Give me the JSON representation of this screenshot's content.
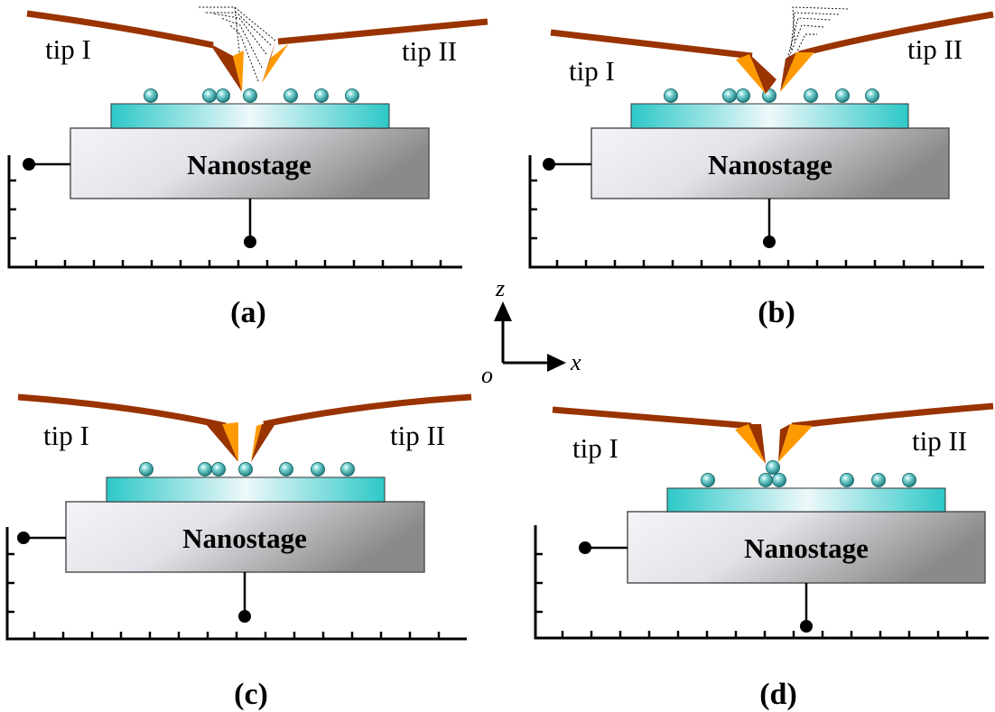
{
  "panels": [
    {
      "id": "a",
      "caption": "(a)",
      "tip1": "tip I",
      "tip2": "tip II",
      "stage": "Nanostage",
      "trajectory": "tip-II"
    },
    {
      "id": "b",
      "caption": "(b)",
      "tip1": "tip I",
      "tip2": "tip II",
      "stage": "Nanostage",
      "trajectory": "tip-II"
    },
    {
      "id": "c",
      "caption": "(c)",
      "tip1": "tip I",
      "tip2": "tip II",
      "stage": "Nanostage",
      "trajectory": "none"
    },
    {
      "id": "d",
      "caption": "(d)",
      "tip1": "tip I",
      "tip2": "tip II",
      "stage": "Nanostage",
      "trajectory": "none"
    }
  ],
  "axes": {
    "z": "z",
    "x": "x",
    "origin": "o"
  },
  "colors": {
    "cantilever": "#993300",
    "tip_face": "#ff9900",
    "substrate": "#33cccc",
    "stage_light": "#f2f2f7",
    "stage_dark": "#888888",
    "particle": "#2a9a9a"
  }
}
